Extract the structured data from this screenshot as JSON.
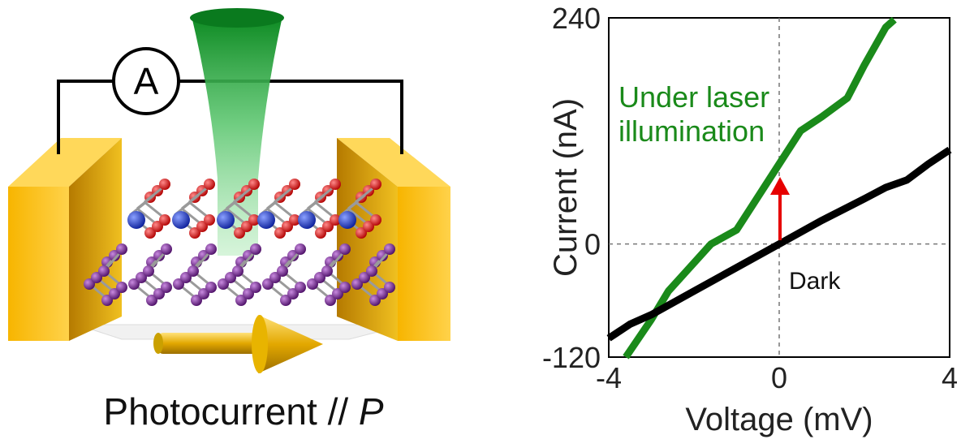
{
  "device": {
    "ammeter_label": "A",
    "caption_main": "Photocurrent // ",
    "caption_symbol": "P",
    "colors": {
      "electrode": "#f5b400",
      "laser": "#1a9a2a",
      "wire": "#000000",
      "atom_red": "#d11919",
      "atom_blue": "#1b34c9",
      "atom_purple": "#6a1b8a",
      "arrow": "#d4a300"
    }
  },
  "chart_data": {
    "type": "line",
    "xlabel": "Voltage (mV)",
    "ylabel": "Current (nA)",
    "xlim": [
      -4,
      4
    ],
    "ylim": [
      -120,
      240
    ],
    "x_ticks": [
      "-4",
      "0",
      "4"
    ],
    "y_ticks": [
      "-120",
      "0",
      "240"
    ],
    "grid": false,
    "series": [
      {
        "name": "Under laser illumination",
        "color": "#1a8a1a",
        "x": [
          -3.6,
          -3.0,
          -2.6,
          -2.2,
          -1.6,
          -1.0,
          -0.5,
          0.0,
          0.5,
          1.0,
          1.6,
          2.0,
          2.5,
          2.7
        ],
        "y": [
          -120,
          -80,
          -50,
          -30,
          0,
          15,
          50,
          85,
          120,
          135,
          155,
          190,
          230,
          238
        ]
      },
      {
        "name": "Dark",
        "color": "#000000",
        "x": [
          -4.0,
          -3.5,
          -3.0,
          -2.0,
          -1.0,
          0.0,
          1.0,
          2.0,
          2.5,
          3.0,
          3.5,
          4.0
        ],
        "y": [
          -100,
          -85,
          -75,
          -50,
          -25,
          0,
          25,
          48,
          60,
          68,
          85,
          100
        ]
      }
    ],
    "annotations": {
      "laser_label_line1": "Under laser",
      "laser_label_line2": "illumination",
      "dark_label": "Dark",
      "arrow_color": "#e60000"
    }
  }
}
